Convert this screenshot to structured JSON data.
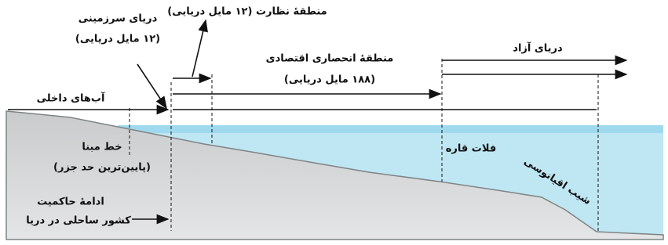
{
  "labels": {
    "territorial_sea": "دریای سرزمینی",
    "territorial_sea_extent": "(۱۲ مایل دریایی)",
    "contiguous_zone": "منطقهٔ نظارت (۱۲ مایل دریایی)",
    "eez": "منطقهٔ انحصاری اقتصادی",
    "eez_extent": "(۱۸۸ مایل دریایی)",
    "high_seas": "دریای آزاد",
    "internal_waters": "آب‌های داخلی",
    "baseline": "خط مبنا",
    "baseline_note": "(پایین‌ترین حد جزر)",
    "continental_shelf": "فلات قاره",
    "continental_slope": "شیب اقیانوسی",
    "sovereignty_line1": "ادامهٔ حاکمیت",
    "sovereignty_line2": "کشور ساحلی در دریا"
  }
}
